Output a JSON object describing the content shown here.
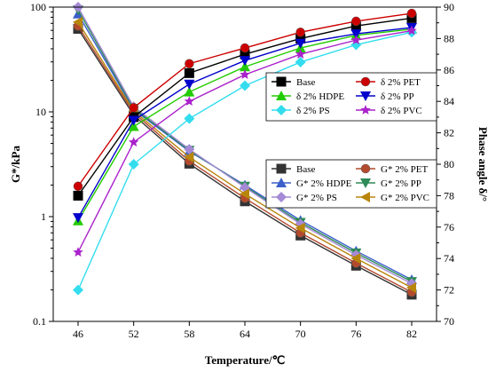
{
  "chart_data": {
    "type": "line",
    "xlabel": "Temperature/℃",
    "ylabel_left": "G*/kPa",
    "ylabel_right": "Phase angle δ/°",
    "x": [
      46,
      52,
      58,
      64,
      70,
      76,
      82
    ],
    "left_axis": {
      "scale": "log",
      "ylim": [
        0.1,
        100
      ],
      "ticks": [
        0.1,
        1,
        10,
        100
      ],
      "tick_labels": [
        "0.1",
        "1",
        "10",
        "100"
      ]
    },
    "right_axis": {
      "scale": "linear",
      "ylim": [
        70,
        90
      ],
      "ticks": [
        70,
        72,
        74,
        76,
        78,
        80,
        82,
        84,
        86,
        88,
        90
      ]
    },
    "legend_delta": {
      "placement": "top-right",
      "entries": [
        "Base",
        "δ 2% PET",
        "δ 2% HDPE",
        "δ 2% PP",
        "δ 2% PS",
        "δ 2% PVC"
      ]
    },
    "legend_g": {
      "placement": "center-right",
      "entries": [
        "Base",
        "G* 2% PET",
        "G* 2% HDPE",
        "G* 2% PP",
        "G* 2% PS",
        "G* 2% PVC"
      ]
    },
    "series_g": [
      {
        "name": "Base",
        "color": "#333333",
        "marker": "square",
        "values": [
          62,
          9.3,
          3.2,
          1.4,
          0.66,
          0.34,
          0.18
        ]
      },
      {
        "name": "G* 2% PET",
        "color": "#b34a2d",
        "marker": "circle",
        "values": [
          66,
          9.8,
          3.4,
          1.5,
          0.7,
          0.36,
          0.19
        ]
      },
      {
        "name": "G* 2% HDPE",
        "color": "#3c5fcc",
        "marker": "triangle-up",
        "values": [
          86,
          10.5,
          4.2,
          2.0,
          0.92,
          0.47,
          0.25
        ]
      },
      {
        "name": "G* 2% PP",
        "color": "#2e8b57",
        "marker": "triangle-down",
        "values": [
          94,
          10.8,
          4.3,
          1.95,
          0.88,
          0.45,
          0.24
        ]
      },
      {
        "name": "G* 2% PS",
        "color": "#a58ad6",
        "marker": "diamond",
        "values": [
          100,
          11.2,
          4.4,
          1.9,
          0.85,
          0.43,
          0.23
        ]
      },
      {
        "name": "G* 2% PVC",
        "color": "#b8860b",
        "marker": "triangle-left",
        "values": [
          72,
          10.2,
          3.7,
          1.65,
          0.78,
          0.4,
          0.21
        ]
      }
    ],
    "series_delta": [
      {
        "name": "Base",
        "color": "#000000",
        "marker": "square",
        "values": [
          78.0,
          83.0,
          85.8,
          87.0,
          88.0,
          88.8,
          89.3
        ]
      },
      {
        "name": "δ 2% PET",
        "color": "#cc0000",
        "marker": "circle",
        "values": [
          78.6,
          83.6,
          86.4,
          87.4,
          88.4,
          89.1,
          89.6
        ]
      },
      {
        "name": "δ 2% HDPE",
        "color": "#22cc00",
        "marker": "triangle-up",
        "values": [
          76.4,
          82.4,
          84.6,
          86.2,
          87.4,
          88.2,
          88.6
        ]
      },
      {
        "name": "δ 2% PP",
        "color": "#0000cc",
        "marker": "triangle-down",
        "values": [
          76.6,
          82.8,
          85.1,
          86.6,
          87.7,
          88.3,
          88.7
        ]
      },
      {
        "name": "δ 2% PS",
        "color": "#33ddee",
        "marker": "diamond",
        "values": [
          72.0,
          80.0,
          82.9,
          85.0,
          86.5,
          87.6,
          88.4
        ]
      },
      {
        "name": "δ 2% PVC",
        "color": "#aa22cc",
        "marker": "star",
        "values": [
          74.4,
          81.4,
          84.0,
          85.7,
          87.0,
          87.9,
          88.5
        ]
      }
    ]
  }
}
